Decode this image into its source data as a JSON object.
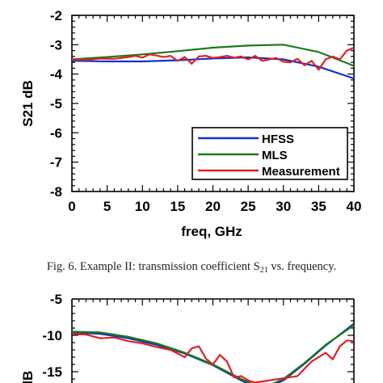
{
  "figure_caption": {
    "prefix": "Fig. 6. Example II: transmission coefficient S",
    "subscript": "21",
    "suffix": " vs. frequency."
  },
  "chart_data": [
    {
      "type": "line",
      "xlabel": "freq, GHz",
      "ylabel": "S21 dB",
      "xlim": [
        0,
        40
      ],
      "ylim": [
        -8,
        -2
      ],
      "xticks": [
        "0",
        "5",
        "10",
        "15",
        "20",
        "25",
        "30",
        "35",
        "40"
      ],
      "yticks": [
        "-2",
        "-3",
        "-4",
        "-5",
        "-6",
        "-7",
        "-8"
      ],
      "legend_position": "bottom-right",
      "series": [
        {
          "name": "HFSS",
          "color": "#1530c8",
          "x": [
            0,
            5,
            10,
            15,
            20,
            25,
            30,
            35,
            40
          ],
          "y": [
            -3.55,
            -3.57,
            -3.57,
            -3.53,
            -3.47,
            -3.43,
            -3.5,
            -3.75,
            -4.15
          ]
        },
        {
          "name": "MLS",
          "color": "#1a7a1a",
          "x": [
            0,
            5,
            10,
            15,
            20,
            25,
            30,
            35,
            40
          ],
          "y": [
            -3.5,
            -3.42,
            -3.33,
            -3.22,
            -3.1,
            -3.03,
            -3.0,
            -3.25,
            -3.72
          ]
        },
        {
          "name": "Measurement",
          "color": "#e02020",
          "x": [
            0,
            2,
            4,
            6,
            8,
            9,
            10,
            11,
            12,
            13,
            14,
            15,
            16,
            17,
            18,
            19,
            20,
            21,
            22,
            23,
            24,
            25,
            26,
            27,
            28,
            29,
            30,
            31,
            32,
            33,
            34,
            35,
            36,
            37,
            38,
            39,
            40
          ],
          "y": [
            -3.5,
            -3.52,
            -3.47,
            -3.48,
            -3.42,
            -3.38,
            -3.44,
            -3.33,
            -3.37,
            -3.42,
            -3.38,
            -3.55,
            -3.42,
            -3.65,
            -3.4,
            -3.38,
            -3.45,
            -3.42,
            -3.38,
            -3.44,
            -3.4,
            -3.5,
            -3.38,
            -3.55,
            -3.5,
            -3.45,
            -3.58,
            -3.6,
            -3.48,
            -3.7,
            -3.55,
            -3.85,
            -3.5,
            -3.4,
            -3.5,
            -3.2,
            -3.1
          ]
        }
      ]
    },
    {
      "type": "line",
      "xlabel": "",
      "ylabel": "dB",
      "xlim": [
        0,
        40
      ],
      "ylim": [
        -15,
        -5
      ],
      "yticks": [
        "-5",
        "-10",
        "-15"
      ],
      "series": [
        {
          "name": "HFSS",
          "color": "#1530c8",
          "x": [
            0,
            4,
            8,
            12,
            16,
            20,
            24,
            27,
            30,
            33,
            36,
            40
          ],
          "y": [
            -9.6,
            -9.8,
            -10.4,
            -11.3,
            -12.5,
            -14.1,
            -16.2,
            -17.5,
            -16.2,
            -13.9,
            -11.4,
            -8.4
          ]
        },
        {
          "name": "MLS",
          "color": "#1a7a1a",
          "x": [
            0,
            4,
            8,
            12,
            16,
            20,
            24,
            27,
            30,
            33,
            36,
            40
          ],
          "y": [
            -9.5,
            -9.6,
            -10.2,
            -11.1,
            -12.4,
            -14.0,
            -16.0,
            -17.3,
            -16.0,
            -13.8,
            -11.3,
            -8.6
          ]
        },
        {
          "name": "Measurement",
          "color": "#e02020",
          "x": [
            0,
            2,
            4,
            6,
            8,
            10,
            12,
            14,
            16,
            17,
            18,
            19,
            20,
            21,
            22,
            23,
            24,
            25,
            26,
            32,
            34,
            36,
            37,
            38,
            39,
            40
          ],
          "y": [
            -9.8,
            -9.9,
            -10.4,
            -10.3,
            -10.8,
            -11.1,
            -11.6,
            -12.0,
            -13.0,
            -11.8,
            -11.5,
            -13.2,
            -14.0,
            -12.7,
            -13.6,
            -15.8,
            -15.6,
            -16.2,
            -16.5,
            -15.6,
            -13.6,
            -12.4,
            -13.3,
            -11.5,
            -10.7,
            -10.8
          ]
        }
      ]
    }
  ]
}
